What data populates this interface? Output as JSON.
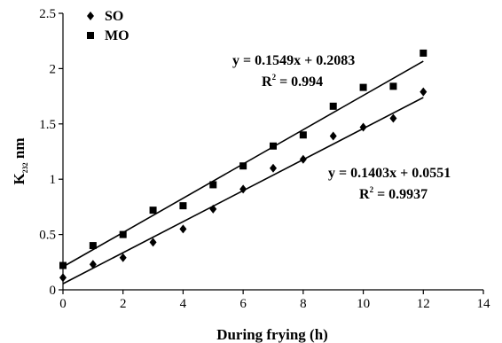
{
  "chart_data": {
    "type": "scatter",
    "xlabel": "During frying (h)",
    "ylabel": {
      "main": "K",
      "sub": "232",
      "unit": " nm"
    },
    "xlim": [
      0,
      14
    ],
    "ylim": [
      0,
      2.5
    ],
    "x_ticks": [
      "0",
      "2",
      "4",
      "6",
      "8",
      "10",
      "12",
      "14"
    ],
    "y_ticks": [
      "0",
      "0.5",
      "1",
      "1.5",
      "2",
      "2.5"
    ],
    "grid": false,
    "legend": {
      "placement": "top-left"
    },
    "series": [
      {
        "name": "SO",
        "marker": "diamond",
        "color": "#000000",
        "x": [
          0,
          1,
          2,
          3,
          4,
          5,
          6,
          7,
          8,
          9,
          10,
          11,
          12
        ],
        "y": [
          0.11,
          0.23,
          0.29,
          0.43,
          0.55,
          0.73,
          0.91,
          1.1,
          1.18,
          1.39,
          1.47,
          1.55,
          1.79
        ],
        "trendline": {
          "slope": 0.1403,
          "intercept": 0.0551,
          "equation": "y = 0.1403x + 0.0551",
          "r2_label": "R",
          "r2_sup": "2",
          "r2_value": " = 0.9937"
        }
      },
      {
        "name": "MO",
        "marker": "square",
        "color": "#000000",
        "x": [
          0,
          1,
          2,
          3,
          4,
          5,
          6,
          7,
          8,
          9,
          10,
          11,
          12
        ],
        "y": [
          0.22,
          0.4,
          0.5,
          0.72,
          0.76,
          0.95,
          1.12,
          1.3,
          1.4,
          1.66,
          1.83,
          1.84,
          2.14
        ],
        "trendline": {
          "slope": 0.1549,
          "intercept": 0.2083,
          "equation": "y = 0.1549x + 0.2083",
          "r2_label": "R",
          "r2_sup": "2",
          "r2_value": " = 0.994"
        }
      }
    ]
  }
}
